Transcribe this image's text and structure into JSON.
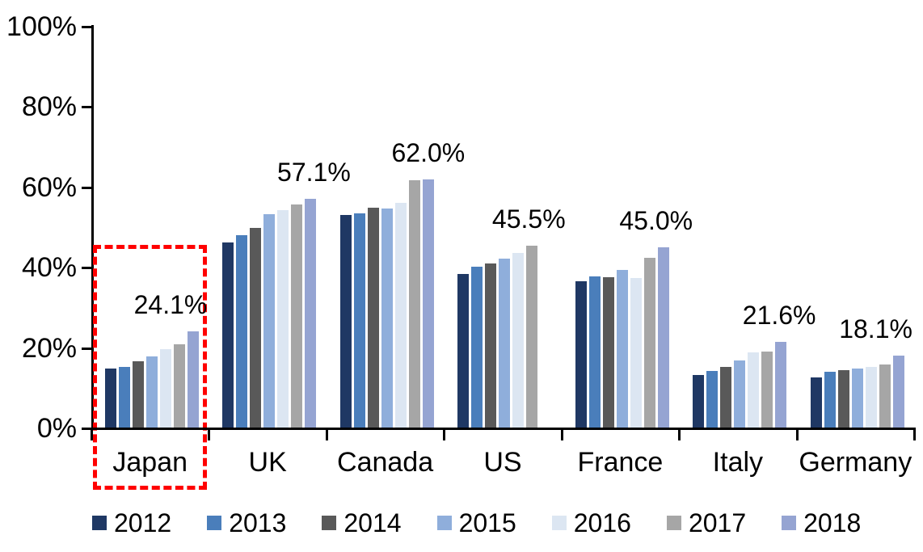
{
  "chart_data": {
    "type": "bar",
    "title": "",
    "xlabel": "",
    "ylabel": "",
    "categories": [
      "Japan",
      "UK",
      "Canada",
      "US",
      "France",
      "Italy",
      "Germany"
    ],
    "series": [
      {
        "name": "2012",
        "color": "#1F3864",
        "values": [
          14.9,
          46.3,
          53.1,
          38.4,
          36.6,
          13.3,
          12.6
        ]
      },
      {
        "name": "2013",
        "color": "#4A7EBB",
        "values": [
          15.2,
          48.0,
          53.5,
          40.2,
          37.8,
          14.2,
          14.1
        ]
      },
      {
        "name": "2014",
        "color": "#595959",
        "values": [
          16.8,
          50.0,
          55.0,
          41.1,
          37.7,
          15.3,
          14.4
        ]
      },
      {
        "name": "2015",
        "color": "#8FAEDB",
        "values": [
          18.0,
          53.4,
          54.7,
          42.2,
          39.5,
          16.9,
          14.8
        ]
      },
      {
        "name": "2016",
        "color": "#DCE6F2",
        "values": [
          19.8,
          54.4,
          56.2,
          43.7,
          37.4,
          18.9,
          15.3
        ]
      },
      {
        "name": "2017",
        "color": "#A6A6A6",
        "values": [
          21.0,
          55.7,
          61.7,
          45.5,
          42.4,
          19.1,
          15.8
        ]
      },
      {
        "name": "2018",
        "color": "#95A4D2",
        "values": [
          24.1,
          57.1,
          62.0,
          null,
          45.0,
          21.6,
          18.1
        ]
      }
    ],
    "data_labels": [
      "24.1%",
      "57.1%",
      "62.0%",
      "45.5%",
      "45.0%",
      "21.6%",
      "18.1%"
    ],
    "y_ticks": [
      "0%",
      "20%",
      "40%",
      "60%",
      "80%",
      "100%"
    ],
    "ylim": [
      0,
      100
    ],
    "grid": false,
    "legend_position": "bottom",
    "legend_entries": [
      "2012",
      "2013",
      "2014",
      "2015",
      "2016",
      "2017",
      "2018"
    ],
    "annotations": {
      "highlighted_category": "Japan",
      "highlight_box_color": "#FF0000",
      "highlight_box_style": "dashed"
    }
  }
}
